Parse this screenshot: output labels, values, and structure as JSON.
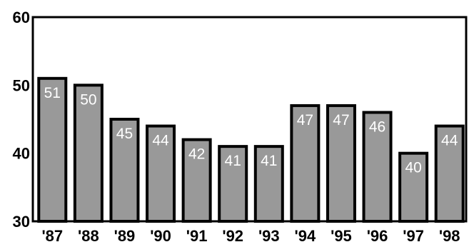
{
  "chart_data": {
    "type": "bar",
    "categories": [
      "'87",
      "'88",
      "'89",
      "'90",
      "'91",
      "'92",
      "'93",
      "'94",
      "'95",
      "'96",
      "'97",
      "'98"
    ],
    "values": [
      51,
      50,
      45,
      44,
      42,
      41,
      41,
      47,
      47,
      46,
      40,
      44
    ],
    "data_labels": [
      "51",
      "50",
      "45",
      "44",
      "42",
      "41",
      "41",
      "47",
      "47",
      "46",
      "40",
      "44"
    ],
    "title": "",
    "xlabel": "",
    "ylabel": "",
    "ylim": [
      30,
      60
    ],
    "yticks": [
      30,
      40,
      50,
      60
    ],
    "ytick_labels": [
      "30",
      "40",
      "50",
      "60"
    ],
    "grid": false,
    "bar_color": "#999999",
    "bar_edge_color": "#000000",
    "label_color": "#ffffff"
  }
}
